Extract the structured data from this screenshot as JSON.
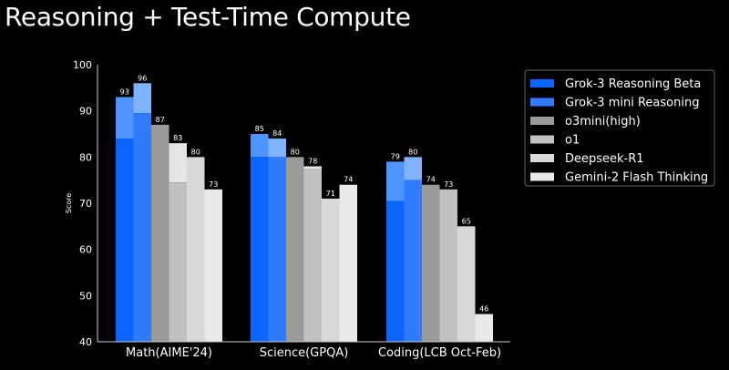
{
  "title": "Reasoning + Test-Time Compute",
  "chart_data": {
    "type": "bar",
    "title": "Reasoning + Test-Time Compute",
    "xlabel": "",
    "ylabel": "Score",
    "ylim": [
      40,
      100
    ],
    "yticks": [
      40,
      50,
      60,
      70,
      80,
      90,
      100
    ],
    "grid": false,
    "legend_placement": "right",
    "categories": [
      "Math(AIME'24)",
      "Science(GPQA)",
      "Coding(LCB Oct-Feb)"
    ],
    "series": [
      {
        "name": "Grok-3 Reasoning Beta",
        "values": [
          93,
          85,
          79
        ],
        "base_values": [
          84,
          80,
          70.5
        ],
        "color": "#0a66ff",
        "top_color": "#4d94ff"
      },
      {
        "name": "Grok-3 mini Reasoning",
        "values": [
          96,
          84,
          80
        ],
        "base_values": [
          89.5,
          80,
          75
        ],
        "color": "#2f7bff",
        "top_color": "#80b3ff"
      },
      {
        "name": "o3mini(high)",
        "values": [
          87,
          80,
          74
        ],
        "base_values": [
          87,
          80,
          74
        ],
        "color": "#9a9b98",
        "top_color": "#9a9b98"
      },
      {
        "name": "o1",
        "values": [
          83,
          78,
          73
        ],
        "base_values": [
          74.5,
          77.5,
          73
        ],
        "color": "#c1c2c0",
        "top_color": "#e4e6e3"
      },
      {
        "name": "Deepseek-R1",
        "values": [
          80,
          71,
          65
        ],
        "base_values": [
          80,
          71,
          65
        ],
        "color": "#d7d9d6",
        "top_color": "#d7d9d6"
      },
      {
        "name": "Gemini-2 Flash Thinking",
        "values": [
          73,
          74,
          46
        ],
        "base_values": [
          73,
          74,
          46
        ],
        "color": "#e8eae7",
        "top_color": "#e8eae7"
      }
    ]
  }
}
